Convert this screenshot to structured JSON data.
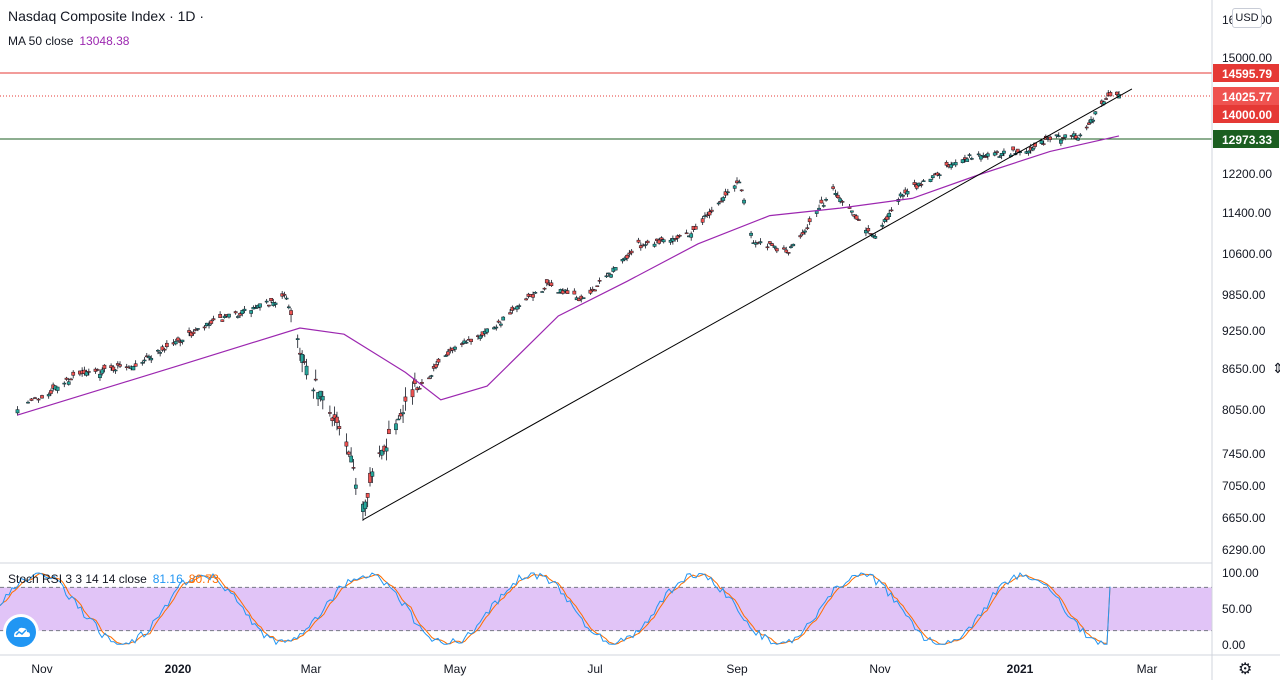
{
  "header": {
    "title": "Nasdaq Composite Index · 1D ·",
    "ma_label": "MA 50 close",
    "ma_value": "13048.38",
    "currency": "USD"
  },
  "indicator": {
    "label": "Stoch RSI 3 3 14 14 close",
    "k_value": "81.16",
    "d_value": "80.73"
  },
  "colors": {
    "up": "#26a69a",
    "down": "#ef5350",
    "ma": "#9c27b0",
    "trendline": "#000000",
    "resistance": "#e53935",
    "support": "#1b5e20",
    "k": "#2196f3",
    "d": "#ff6d00",
    "band": "#e1c4f7"
  },
  "chart_data": [
    {
      "type": "candlestick",
      "title": "Nasdaq Composite Index · 1D",
      "y_ticks": [
        "6290.00",
        "6650.00",
        "7050.00",
        "7450.00",
        "8050.00",
        "8650.00",
        "9250.00",
        "9850.00",
        "10600.00",
        "11400.00",
        "12200.00",
        "15000.00",
        "16000.00"
      ],
      "x_ticks": [
        "Nov",
        "2020",
        "Mar",
        "May",
        "Jul",
        "Sep",
        "Nov",
        "2021",
        "Mar"
      ],
      "price_labels": [
        {
          "value": "14595.79",
          "kind": "resistance",
          "color": "#e53935"
        },
        {
          "value": "14025.77",
          "kind": "last",
          "color": "#ef5350"
        },
        {
          "value": "14000.00",
          "kind": "level",
          "color": "#e53935"
        },
        {
          "value": "12973.33",
          "kind": "support",
          "color": "#1b5e20"
        }
      ],
      "series_approx_close": [
        [
          "2019-10-25",
          8100
        ],
        [
          "2019-11-15",
          8540
        ],
        [
          "2019-12-13",
          8730
        ],
        [
          "2020-01-17",
          9390
        ],
        [
          "2020-02-19",
          9820
        ],
        [
          "2020-02-28",
          8570
        ],
        [
          "2020-03-11",
          7950
        ],
        [
          "2020-03-23",
          6860
        ],
        [
          "2020-04-08",
          8090
        ],
        [
          "2020-04-29",
          8910
        ],
        [
          "2020-05-20",
          9380
        ],
        [
          "2020-06-10",
          10020
        ],
        [
          "2020-06-26",
          9760
        ],
        [
          "2020-07-20",
          10770
        ],
        [
          "2020-08-12",
          11010
        ],
        [
          "2020-09-02",
          12060
        ],
        [
          "2020-09-08",
          10850
        ],
        [
          "2020-09-23",
          10630
        ],
        [
          "2020-10-12",
          11870
        ],
        [
          "2020-10-30",
          10910
        ],
        [
          "2020-11-09",
          11710
        ],
        [
          "2020-12-08",
          12580
        ],
        [
          "2021-01-04",
          12700
        ],
        [
          "2021-01-15",
          12990
        ],
        [
          "2021-01-29",
          13070
        ],
        [
          "2021-02-12",
          14100
        ],
        [
          "2021-02-16",
          14025
        ]
      ],
      "ma50_approx": [
        [
          "2019-10-25",
          7980
        ],
        [
          "2020-01-01",
          8700
        ],
        [
          "2020-02-25",
          9300
        ],
        [
          "2020-03-15",
          9200
        ],
        [
          "2020-04-10",
          8600
        ],
        [
          "2020-04-25",
          8200
        ],
        [
          "2020-05-15",
          8400
        ],
        [
          "2020-06-15",
          9500
        ],
        [
          "2020-07-15",
          10100
        ],
        [
          "2020-08-15",
          10800
        ],
        [
          "2020-09-15",
          11350
        ],
        [
          "2020-10-15",
          11500
        ],
        [
          "2020-11-15",
          11700
        ],
        [
          "2020-12-15",
          12200
        ],
        [
          "2021-01-15",
          12700
        ],
        [
          "2021-02-16",
          13048
        ]
      ],
      "trendline": {
        "from": [
          "2020-03-23",
          6630
        ],
        "to": [
          "2021-02-22",
          14200
        ]
      },
      "horizontal_lines": [
        {
          "value": 14595.79,
          "style": "solid"
        },
        {
          "value": 14025.77,
          "style": "dotted"
        },
        {
          "value": 12973.33,
          "style": "solid"
        }
      ]
    },
    {
      "type": "line",
      "title": "Stoch RSI 3 3 14 14 close",
      "y_ticks": [
        "0.00",
        "50.00",
        "100.00"
      ],
      "band": [
        20,
        80
      ],
      "series": [
        {
          "name": "K",
          "last": 81.16
        },
        {
          "name": "D",
          "last": 80.73
        }
      ]
    }
  ]
}
